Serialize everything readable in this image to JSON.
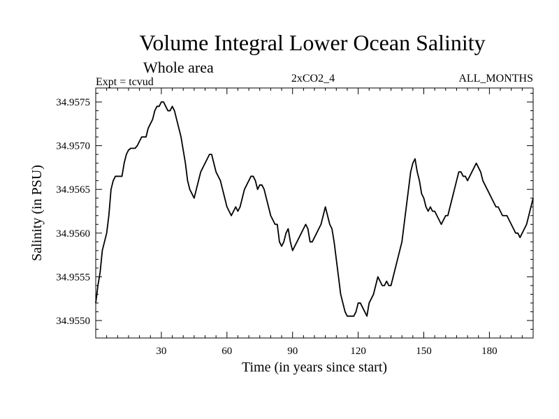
{
  "chart_data": {
    "type": "line",
    "title": "Volume Integral Lower Ocean Salinity",
    "subtitle": "Whole area",
    "expt_label": "Expt = tcvud",
    "run_label": "2xCO2_4",
    "period_label": "ALL_MONTHS",
    "xlabel": "Time (in years since start)",
    "ylabel": "Salinity (in PSU)",
    "xlim": [
      0,
      200
    ],
    "ylim": [
      34.9548,
      34.95766
    ],
    "xticks": [
      30,
      60,
      90,
      120,
      150,
      180
    ],
    "xtick_labels": [
      "30",
      "60",
      "90",
      "120",
      "150",
      "180"
    ],
    "yticks": [
      34.955,
      34.9555,
      34.956,
      34.9565,
      34.957,
      34.9575
    ],
    "ytick_labels": [
      "34.9550",
      "34.9555",
      "34.9560",
      "34.9565",
      "34.9570",
      "34.9575"
    ],
    "line_color": "#000000",
    "series": [
      {
        "x": [
          0,
          1,
          2,
          3,
          4,
          5,
          6,
          7,
          8,
          9,
          10,
          11,
          12,
          13,
          14,
          15,
          16,
          17,
          18,
          19,
          20,
          21,
          22,
          23,
          24,
          25,
          26,
          27,
          28,
          29,
          30,
          31,
          32,
          33,
          34,
          35,
          36,
          37,
          38,
          39,
          40,
          41,
          42,
          43,
          44,
          45,
          46,
          47,
          48,
          49,
          50,
          51,
          52,
          53,
          54,
          55,
          56,
          57,
          58,
          59,
          60,
          61,
          62,
          63,
          64,
          65,
          66,
          67,
          68,
          69,
          70,
          71,
          72,
          73,
          74,
          75,
          76,
          77,
          78,
          79,
          80,
          81,
          82,
          83,
          84,
          85,
          86,
          87,
          88,
          89,
          90,
          91,
          92,
          93,
          94,
          95,
          96,
          97,
          98,
          99,
          100,
          101,
          102,
          103,
          104,
          105,
          106,
          107,
          108,
          109,
          110,
          111,
          112,
          113,
          114,
          115,
          116,
          117,
          118,
          119,
          120,
          121,
          122,
          123,
          124,
          125,
          126,
          127,
          128,
          129,
          130,
          131,
          132,
          133,
          134,
          135,
          136,
          137,
          138,
          139,
          140,
          141,
          142,
          143,
          144,
          145,
          146,
          147,
          148,
          149,
          150,
          151,
          152,
          153,
          154,
          155,
          156,
          157,
          158,
          159,
          160,
          161,
          162,
          163,
          164,
          165,
          166,
          167,
          168,
          169,
          170,
          171,
          172,
          173,
          174,
          175,
          176,
          177,
          178,
          179,
          180,
          181,
          182,
          183,
          184,
          185,
          186,
          187,
          188,
          189,
          190,
          191,
          192,
          193,
          194,
          195,
          196,
          197,
          198,
          199,
          200
        ],
        "y": [
          34.9552,
          34.9554,
          34.95555,
          34.9558,
          34.9559,
          34.956,
          34.9562,
          34.9565,
          34.9566,
          34.95665,
          34.95665,
          34.95665,
          34.95665,
          34.9568,
          34.9569,
          34.95695,
          34.95697,
          34.95697,
          34.95697,
          34.957,
          34.95705,
          34.9571,
          34.9571,
          34.9571,
          34.9572,
          34.95725,
          34.9573,
          34.9574,
          34.95745,
          34.95745,
          34.9575,
          34.9575,
          34.95745,
          34.9574,
          34.9574,
          34.95745,
          34.9574,
          34.9573,
          34.9572,
          34.9571,
          34.95695,
          34.9568,
          34.9566,
          34.9565,
          34.95645,
          34.9564,
          34.9565,
          34.9566,
          34.9567,
          34.95675,
          34.9568,
          34.95685,
          34.9569,
          34.9569,
          34.9568,
          34.9567,
          34.95665,
          34.9566,
          34.9565,
          34.9564,
          34.9563,
          34.95625,
          34.9562,
          34.95625,
          34.9563,
          34.95625,
          34.9563,
          34.9564,
          34.9565,
          34.95655,
          34.9566,
          34.95665,
          34.95665,
          34.9566,
          34.9565,
          34.95655,
          34.95655,
          34.9565,
          34.9564,
          34.9563,
          34.9562,
          34.95615,
          34.9561,
          34.9561,
          34.9559,
          34.95585,
          34.9559,
          34.956,
          34.95605,
          34.9559,
          34.9558,
          34.95585,
          34.9559,
          34.95595,
          34.956,
          34.95605,
          34.9561,
          34.95605,
          34.9559,
          34.9559,
          34.95595,
          34.956,
          34.95605,
          34.9561,
          34.9562,
          34.9563,
          34.9562,
          34.9561,
          34.95605,
          34.9559,
          34.9557,
          34.9555,
          34.9553,
          34.9552,
          34.9551,
          34.95505,
          34.95505,
          34.95505,
          34.95505,
          34.9551,
          34.9552,
          34.9552,
          34.95515,
          34.9551,
          34.95505,
          34.9552,
          34.95525,
          34.9553,
          34.9554,
          34.9555,
          34.95545,
          34.9554,
          34.9554,
          34.95545,
          34.9554,
          34.9554,
          34.9555,
          34.9556,
          34.9557,
          34.9558,
          34.9559,
          34.9561,
          34.9563,
          34.9565,
          34.9567,
          34.9568,
          34.95685,
          34.9567,
          34.9566,
          34.95645,
          34.9564,
          34.9563,
          34.95625,
          34.9563,
          34.95625,
          34.95625,
          34.9562,
          34.95615,
          34.9561,
          34.95615,
          34.9562,
          34.9562,
          34.9563,
          34.9564,
          34.9565,
          34.9566,
          34.9567,
          34.9567,
          34.95665,
          34.95665,
          34.9566,
          34.95665,
          34.9567,
          34.95675,
          34.9568,
          34.95675,
          34.9567,
          34.9566,
          34.95655,
          34.9565,
          34.95645,
          34.9564,
          34.95635,
          34.9563,
          34.9563,
          34.95625,
          34.9562,
          34.9562,
          34.9562,
          34.95615,
          34.9561,
          34.95605,
          34.956,
          34.956,
          34.95595,
          34.956,
          34.95605,
          34.9561,
          34.9562,
          34.9563,
          34.9564
        ]
      }
    ]
  }
}
